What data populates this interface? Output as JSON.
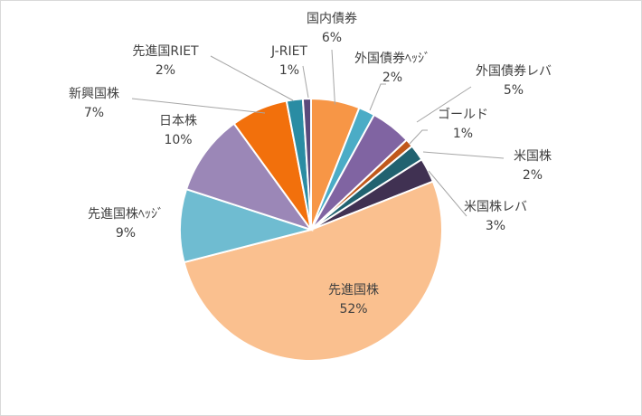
{
  "chart_data": {
    "type": "pie",
    "title": "",
    "start_angle_deg": 0,
    "direction": "clockwise",
    "grid": false,
    "legend": "none",
    "slices": [
      {
        "key": "domestic-bonds",
        "label": "国内債券",
        "value": 6,
        "value_label": "6%",
        "color": "#f79646"
      },
      {
        "key": "foreign-bonds-hedged",
        "label": "外国債券ﾍｯｼﾞ",
        "value": 2,
        "value_label": "2%",
        "color": "#4bacc6"
      },
      {
        "key": "foreign-bonds-leveraged",
        "label": "外国債券レバ",
        "value": 5,
        "value_label": "5%",
        "color": "#8064a2"
      },
      {
        "key": "gold",
        "label": "ゴールド",
        "value": 1,
        "value_label": "1%",
        "color": "#c0581b"
      },
      {
        "key": "us-stocks",
        "label": "米国株",
        "value": 2,
        "value_label": "2%",
        "color": "#216270"
      },
      {
        "key": "us-stocks-leveraged",
        "label": "米国株レバ",
        "value": 3,
        "value_label": "3%",
        "color": "#403152"
      },
      {
        "key": "developed-stocks",
        "label": "先進国株",
        "value": 52,
        "value_label": "52%",
        "color": "#fac08f"
      },
      {
        "key": "developed-stocks-hedged",
        "label": "先進国株ﾍｯｼﾞ",
        "value": 9,
        "value_label": "9%",
        "color": "#6fbcd1"
      },
      {
        "key": "japan-stocks",
        "label": "日本株",
        "value": 10,
        "value_label": "10%",
        "color": "#9b87b7"
      },
      {
        "key": "emerging-stocks",
        "label": "新興国株",
        "value": 7,
        "value_label": "7%",
        "color": "#f2700c"
      },
      {
        "key": "developed-reit",
        "label": "先進国RIET",
        "value": 2,
        "value_label": "2%",
        "color": "#2a8ca3"
      },
      {
        "key": "j-reit",
        "label": "J-RIET",
        "value": 1,
        "value_label": "1%",
        "color": "#5b4a7c"
      }
    ]
  }
}
